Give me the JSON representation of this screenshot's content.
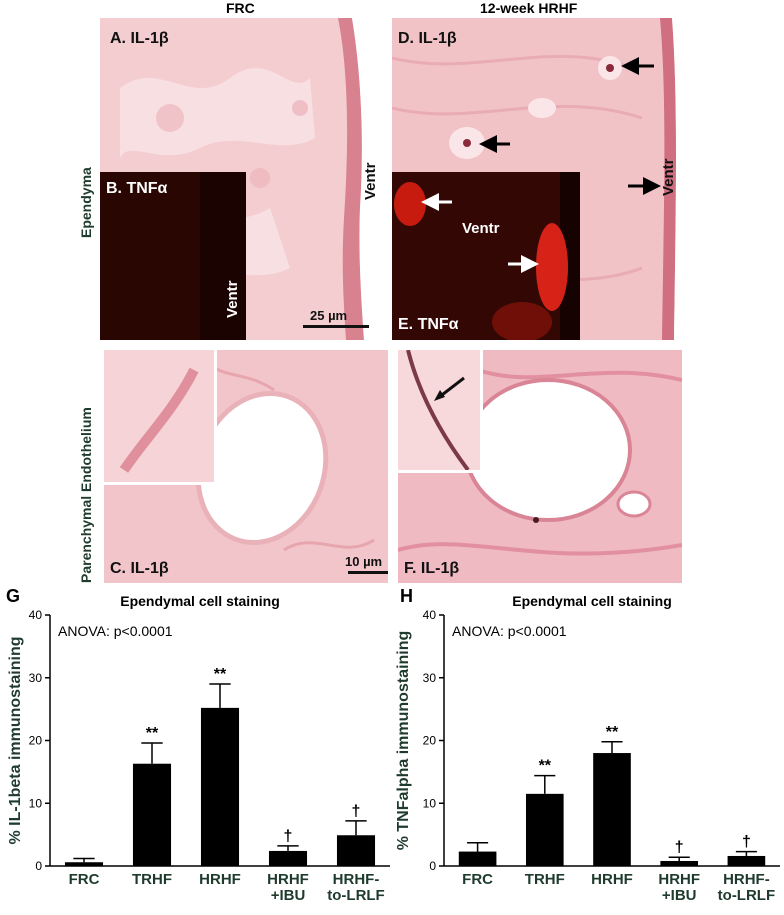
{
  "columns": {
    "left": "FRC",
    "right": "12-week HRHF"
  },
  "rows": {
    "top": "Ependyma",
    "bottom": "Parenchymal Endothelium"
  },
  "panels": {
    "A": "A. IL-1β",
    "B": "B. TNFα",
    "C": "C. IL-1β",
    "D": "D. IL-1β",
    "E": "E. TNFα",
    "F": "F. IL-1β"
  },
  "labels": {
    "ventr": "Ventr"
  },
  "scale": {
    "top": "25 µm",
    "bottom": "10 µm"
  },
  "colors": {
    "tissue": "#f3c6c8",
    "tissue_dark": "#e7a9b0",
    "fluor_bg": "#2a0603",
    "fluor_red": "#ff2a1a",
    "bar": "#000000",
    "category": "#1f3b2d"
  },
  "chart_data": [
    {
      "type": "bar",
      "panel_letter": "G",
      "title": "Ependymal cell staining",
      "annotation": "ANOVA: p<0.0001",
      "ylabel": "% IL-1beta immunostaining",
      "ylim": [
        0,
        40
      ],
      "yticks": [
        "0",
        "10",
        "20",
        "30",
        "40"
      ],
      "categories": [
        [
          "FRC"
        ],
        [
          "TRHF"
        ],
        [
          "HRHF"
        ],
        [
          "HRHF",
          "+IBU"
        ],
        [
          "HRHF-",
          "to-LRLF"
        ]
      ],
      "values": [
        0.6,
        16.3,
        25.2,
        2.4,
        4.9
      ],
      "errors": [
        0.6,
        3.3,
        3.8,
        0.8,
        2.3
      ],
      "markers": [
        "",
        "**",
        "**",
        "†",
        "†"
      ]
    },
    {
      "type": "bar",
      "panel_letter": "H",
      "title": "Ependymal cell staining",
      "annotation": "ANOVA: p<0.0001",
      "ylabel": "% TNFalpha immunostaining",
      "ylim": [
        0,
        40
      ],
      "yticks": [
        "0",
        "10",
        "20",
        "30",
        "40"
      ],
      "categories": [
        [
          "FRC"
        ],
        [
          "TRHF"
        ],
        [
          "HRHF"
        ],
        [
          "HRHF",
          "+IBU"
        ],
        [
          "HRHF-",
          "to-LRLF"
        ]
      ],
      "values": [
        2.3,
        11.5,
        18.0,
        0.8,
        1.6
      ],
      "errors": [
        1.4,
        2.9,
        1.8,
        0.6,
        0.7
      ],
      "markers": [
        "",
        "**",
        "**",
        "†",
        "†"
      ]
    }
  ]
}
